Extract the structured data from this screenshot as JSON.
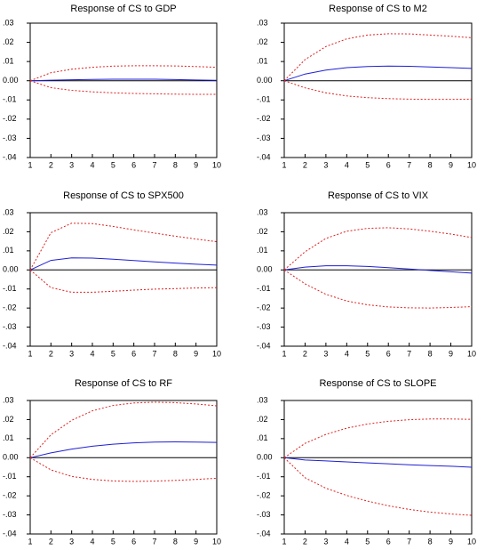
{
  "colors": {
    "response": "#1f1fd6",
    "band": "#e01f1f",
    "zero_line": "#000000",
    "axes": "#000000",
    "text": "#000000"
  },
  "chart_data": [
    {
      "type": "line",
      "title": "Response of CS to GDP",
      "x": [
        1,
        2,
        3,
        4,
        5,
        6,
        7,
        8,
        9,
        10
      ],
      "ylim": [
        -0.04,
        0.03
      ],
      "y_ticks": [
        ".03",
        ".02",
        ".01",
        "0.00",
        "-.01",
        "-.02",
        "-.03",
        "-.04"
      ],
      "x_ticks": [
        "1",
        "2",
        "3",
        "4",
        "5",
        "6",
        "7",
        "8",
        "9",
        "10"
      ],
      "series": [
        {
          "role": "response",
          "values": [
            0.0,
            0.0003,
            0.0005,
            0.0007,
            0.0008,
            0.0008,
            0.0008,
            0.0006,
            0.0004,
            0.0002
          ]
        },
        {
          "role": "upper",
          "values": [
            0.0,
            0.0042,
            0.006,
            0.007,
            0.0076,
            0.0078,
            0.0078,
            0.0077,
            0.0074,
            0.007
          ]
        },
        {
          "role": "lower",
          "values": [
            0.0,
            -0.0036,
            -0.005,
            -0.0058,
            -0.0063,
            -0.0066,
            -0.0068,
            -0.007,
            -0.0071,
            -0.0071
          ]
        }
      ]
    },
    {
      "type": "line",
      "title": "Response of CS to M2",
      "x": [
        1,
        2,
        3,
        4,
        5,
        6,
        7,
        8,
        9,
        10
      ],
      "ylim": [
        -0.04,
        0.03
      ],
      "y_ticks": [
        ".03",
        ".02",
        ".01",
        "0.00",
        "-.01",
        "-.02",
        "-.03",
        "-.04"
      ],
      "x_ticks": [
        "1",
        "2",
        "3",
        "4",
        "5",
        "6",
        "7",
        "8",
        "9",
        "10"
      ],
      "series": [
        {
          "role": "response",
          "values": [
            0.0,
            0.0035,
            0.0055,
            0.0068,
            0.0074,
            0.0076,
            0.0075,
            0.0072,
            0.0068,
            0.0064
          ]
        },
        {
          "role": "upper",
          "values": [
            0.0,
            0.011,
            0.0178,
            0.0218,
            0.0238,
            0.0245,
            0.0244,
            0.0238,
            0.0232,
            0.0224
          ]
        },
        {
          "role": "lower",
          "values": [
            0.0,
            -0.0037,
            -0.0063,
            -0.0079,
            -0.0088,
            -0.0093,
            -0.0096,
            -0.0097,
            -0.0097,
            -0.0096
          ]
        }
      ]
    },
    {
      "type": "line",
      "title": "Response of CS to SPX500",
      "x": [
        1,
        2,
        3,
        4,
        5,
        6,
        7,
        8,
        9,
        10
      ],
      "ylim": [
        -0.04,
        0.03
      ],
      "y_ticks": [
        ".03",
        ".02",
        ".01",
        "0.00",
        "-.01",
        "-.02",
        "-.03",
        "-.04"
      ],
      "x_ticks": [
        "1",
        "2",
        "3",
        "4",
        "5",
        "6",
        "7",
        "8",
        "9",
        "10"
      ],
      "series": [
        {
          "role": "response",
          "values": [
            0.0,
            0.005,
            0.0063,
            0.0062,
            0.0056,
            0.0049,
            0.0042,
            0.0036,
            0.003,
            0.0025
          ]
        },
        {
          "role": "upper",
          "values": [
            0.0,
            0.0195,
            0.0245,
            0.0243,
            0.0228,
            0.021,
            0.0193,
            0.0177,
            0.0162,
            0.0148
          ]
        },
        {
          "role": "lower",
          "values": [
            0.0,
            -0.0093,
            -0.0117,
            -0.0117,
            -0.0112,
            -0.0106,
            -0.0101,
            -0.0098,
            -0.0095,
            -0.0093
          ]
        }
      ]
    },
    {
      "type": "line",
      "title": "Response of CS to VIX",
      "x": [
        1,
        2,
        3,
        4,
        5,
        6,
        7,
        8,
        9,
        10
      ],
      "ylim": [
        -0.04,
        0.03
      ],
      "y_ticks": [
        ".03",
        ".02",
        ".01",
        "0.00",
        "-.01",
        "-.02",
        "-.03",
        "-.04"
      ],
      "x_ticks": [
        "1",
        "2",
        "3",
        "4",
        "5",
        "6",
        "7",
        "8",
        "9",
        "10"
      ],
      "series": [
        {
          "role": "response",
          "values": [
            0.0,
            0.0015,
            0.0022,
            0.0022,
            0.0018,
            0.0012,
            0.0005,
            -0.0003,
            -0.001,
            -0.0017
          ]
        },
        {
          "role": "upper",
          "values": [
            0.0,
            0.0095,
            0.0165,
            0.0203,
            0.0218,
            0.0221,
            0.0215,
            0.0203,
            0.0188,
            0.017
          ]
        },
        {
          "role": "lower",
          "values": [
            0.0,
            -0.0073,
            -0.0128,
            -0.0163,
            -0.0183,
            -0.0194,
            -0.0199,
            -0.02,
            -0.0197,
            -0.0193
          ]
        }
      ]
    },
    {
      "type": "line",
      "title": "Response of CS to RF",
      "x": [
        1,
        2,
        3,
        4,
        5,
        6,
        7,
        8,
        9,
        10
      ],
      "ylim": [
        -0.04,
        0.03
      ],
      "y_ticks": [
        ".03",
        ".02",
        ".01",
        "0.00",
        "-.01",
        "-.02",
        "-.03",
        "-.04"
      ],
      "x_ticks": [
        "1",
        "2",
        "3",
        "4",
        "5",
        "6",
        "7",
        "8",
        "9",
        "10"
      ],
      "series": [
        {
          "role": "response",
          "values": [
            0.0,
            0.0025,
            0.0045,
            0.006,
            0.0071,
            0.0078,
            0.0082,
            0.0083,
            0.0082,
            0.008
          ]
        },
        {
          "role": "upper",
          "values": [
            0.0,
            0.012,
            0.0196,
            0.0246,
            0.0274,
            0.0287,
            0.0291,
            0.0289,
            0.0282,
            0.0272
          ]
        },
        {
          "role": "lower",
          "values": [
            0.0,
            -0.0064,
            -0.0098,
            -0.0114,
            -0.0122,
            -0.0124,
            -0.0123,
            -0.0119,
            -0.0114,
            -0.0108
          ]
        }
      ]
    },
    {
      "type": "line",
      "title": "Response of CS to SLOPE",
      "x": [
        1,
        2,
        3,
        4,
        5,
        6,
        7,
        8,
        9,
        10
      ],
      "ylim": [
        -0.04,
        0.03
      ],
      "y_ticks": [
        ".03",
        ".02",
        ".01",
        "0.00",
        "-.01",
        "-.02",
        "-.03",
        "-.04"
      ],
      "x_ticks": [
        "1",
        "2",
        "3",
        "4",
        "5",
        "6",
        "7",
        "8",
        "9",
        "10"
      ],
      "series": [
        {
          "role": "response",
          "values": [
            0.0,
            -0.0012,
            -0.0017,
            -0.0022,
            -0.0027,
            -0.0032,
            -0.0037,
            -0.0041,
            -0.0045,
            -0.005
          ]
        },
        {
          "role": "upper",
          "values": [
            0.0,
            0.0075,
            0.0122,
            0.0155,
            0.0177,
            0.0191,
            0.0199,
            0.0203,
            0.0203,
            0.0201
          ]
        },
        {
          "role": "lower",
          "values": [
            0.0,
            -0.0105,
            -0.016,
            -0.0198,
            -0.0228,
            -0.0252,
            -0.0271,
            -0.0285,
            -0.0295,
            -0.0302
          ]
        }
      ]
    }
  ]
}
